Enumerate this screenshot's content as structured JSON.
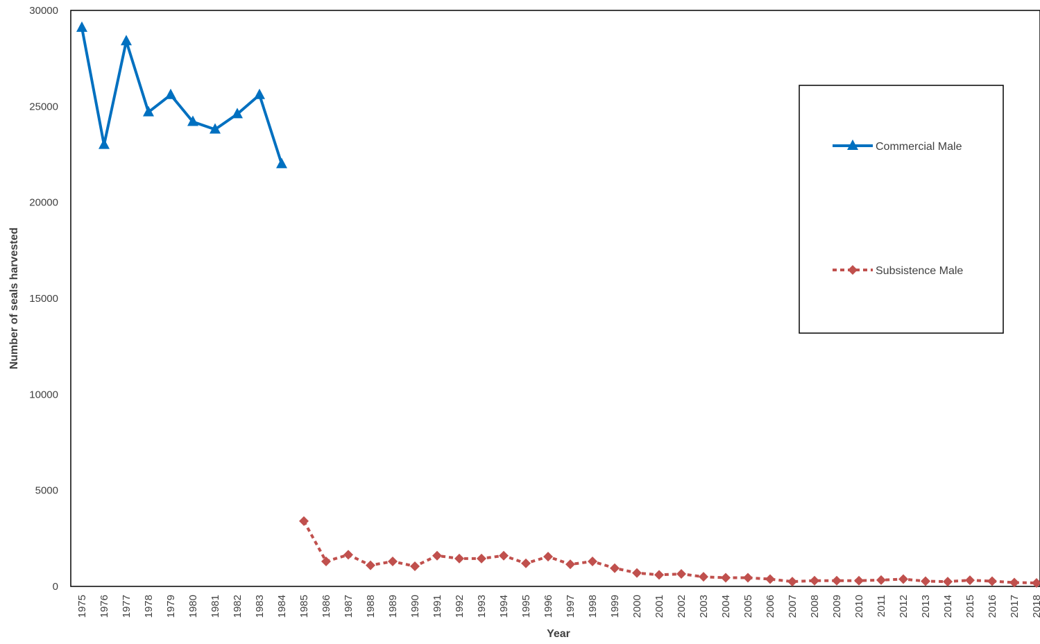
{
  "chart_data": {
    "type": "line",
    "title": "",
    "xlabel": "Year",
    "ylabel": "Number of seals harvested",
    "ylim": [
      0,
      30000
    ],
    "y_ticks": [
      0,
      5000,
      10000,
      15000,
      20000,
      25000,
      30000
    ],
    "grid": false,
    "legend_position": "right",
    "categories": [
      "1975",
      "1976",
      "1977",
      "1978",
      "1979",
      "1980",
      "1981",
      "1982",
      "1983",
      "1984",
      "1985",
      "1986",
      "1987",
      "1988",
      "1989",
      "1990",
      "1991",
      "1992",
      "1993",
      "1994",
      "1995",
      "1996",
      "1997",
      "1998",
      "1999",
      "2000",
      "2001",
      "2002",
      "2003",
      "2004",
      "2005",
      "2006",
      "2007",
      "2008",
      "2009",
      "2010",
      "2011",
      "2012",
      "2013",
      "2014",
      "2015",
      "2016",
      "2017",
      "2018"
    ],
    "series": [
      {
        "name": "Commercial Male",
        "color": "#0070c0",
        "style": "solid",
        "marker": "triangle",
        "values": [
          29100,
          23000,
          28400,
          24700,
          25600,
          24200,
          23800,
          24600,
          25600,
          22000,
          null,
          null,
          null,
          null,
          null,
          null,
          null,
          null,
          null,
          null,
          null,
          null,
          null,
          null,
          null,
          null,
          null,
          null,
          null,
          null,
          null,
          null,
          null,
          null,
          null,
          null,
          null,
          null,
          null,
          null,
          null,
          null,
          null,
          null
        ]
      },
      {
        "name": "Subsistence Male",
        "color": "#c0504d",
        "style": "dotted",
        "marker": "diamond",
        "values": [
          null,
          null,
          null,
          null,
          null,
          null,
          null,
          null,
          null,
          null,
          3400,
          1300,
          1650,
          1100,
          1300,
          1050,
          1600,
          1450,
          1450,
          1600,
          1200,
          1550,
          1150,
          1300,
          950,
          700,
          600,
          650,
          500,
          450,
          450,
          380,
          250,
          300,
          300,
          300,
          330,
          380,
          270,
          250,
          320,
          270,
          200,
          180
        ]
      }
    ]
  }
}
